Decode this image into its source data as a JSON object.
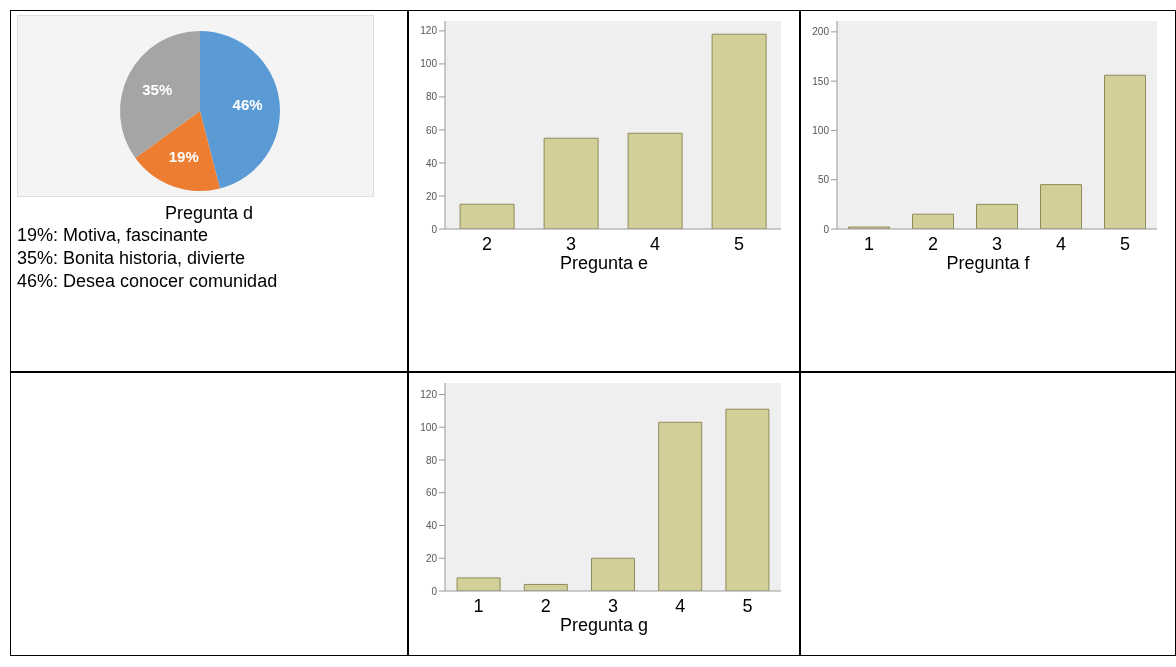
{
  "chart_data": [
    {
      "type": "pie",
      "title": "Pregunta d",
      "categories": [
        null,
        null,
        null
      ],
      "values": [
        46,
        19,
        35
      ],
      "colors": [
        "#5b9bd5",
        "#ed7d31",
        "#a5a5a5"
      ],
      "value_labels": [
        "46%",
        "19%",
        "35%"
      ],
      "legend": false,
      "annotations": [
        "19%: Motiva, fascinante",
        "35%: Bonita historia, divierte",
        "46%: Desea conocer comunidad"
      ]
    },
    {
      "type": "bar",
      "xlabel": "Pregunta e",
      "categories": [
        "2",
        "3",
        "4",
        "5"
      ],
      "values": [
        15,
        55,
        58,
        118
      ],
      "color": "#d3cf98",
      "ylim": [
        0,
        126
      ],
      "yticks": [
        0,
        20,
        40,
        60,
        80,
        100,
        120
      ],
      "grid": false
    },
    {
      "type": "bar",
      "xlabel": "Pregunta f",
      "categories": [
        "1",
        "2",
        "3",
        "4",
        "5"
      ],
      "values": [
        2,
        15,
        25,
        45,
        156
      ],
      "color": "#d3cf98",
      "ylim": [
        0,
        211
      ],
      "yticks": [
        0,
        50,
        100,
        150,
        200
      ],
      "grid": false
    },
    {
      "type": "bar",
      "xlabel": "Pregunta g",
      "categories": [
        "1",
        "2",
        "3",
        "4",
        "5"
      ],
      "values": [
        8,
        4,
        20,
        103,
        111
      ],
      "color": "#d3cf98",
      "ylim": [
        0,
        127
      ],
      "yticks": [
        0,
        20,
        40,
        60,
        80,
        100,
        120
      ],
      "grid": false
    }
  ]
}
